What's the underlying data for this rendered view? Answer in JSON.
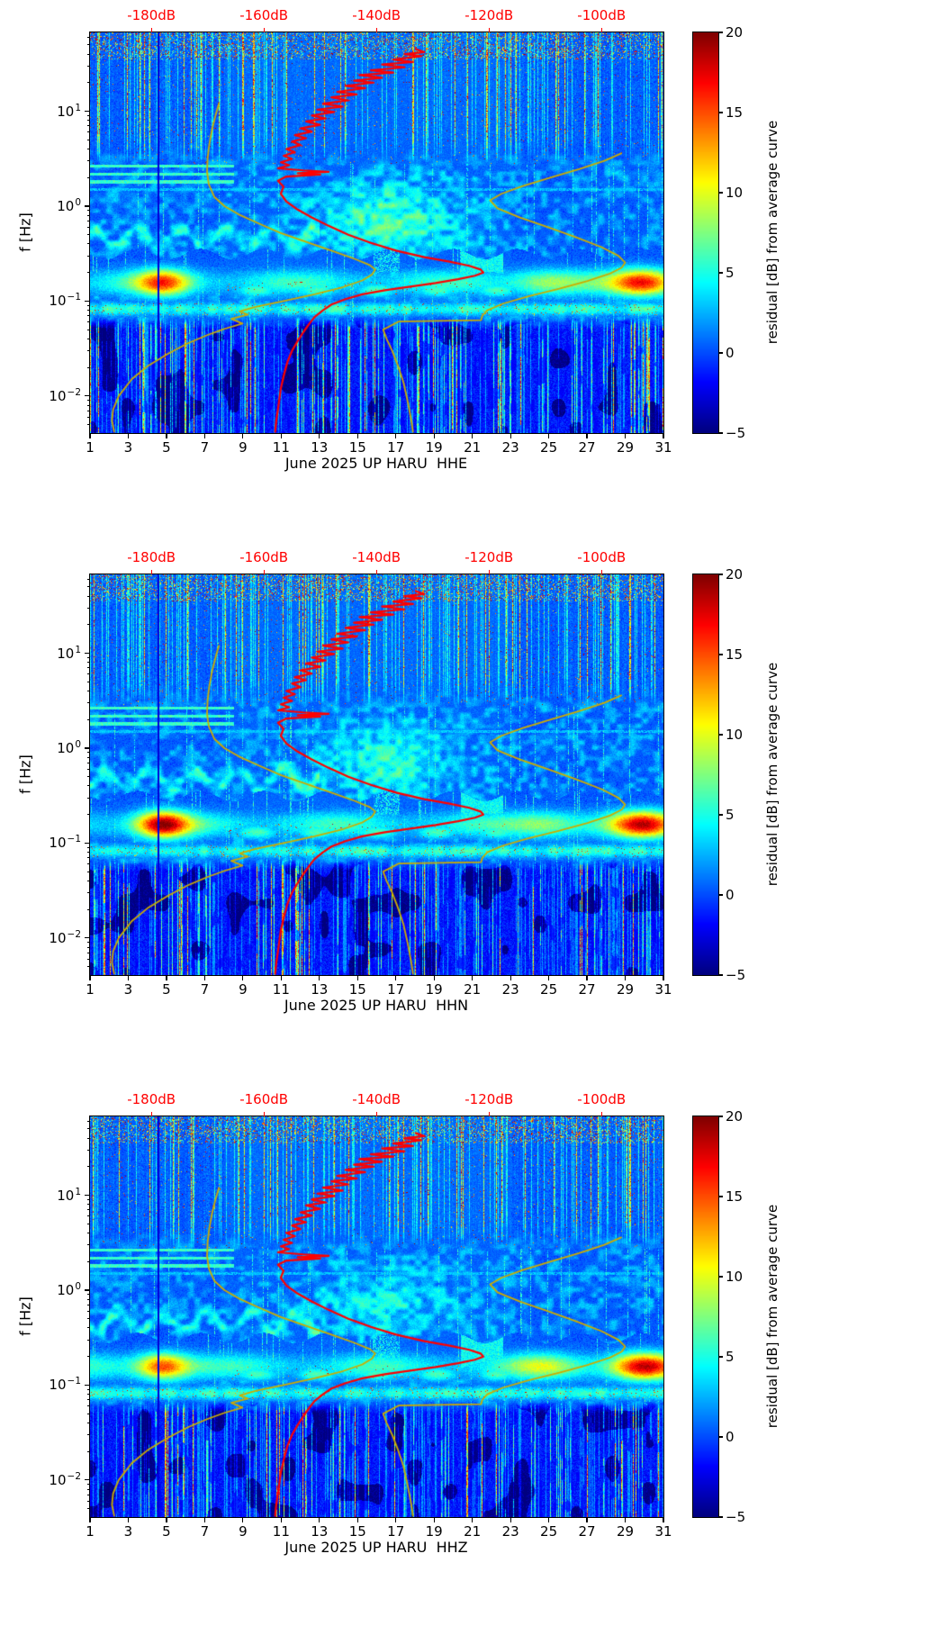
{
  "chart_data": {
    "type": "heatmap",
    "title": "",
    "colormap": "jet",
    "color_limits_db": [
      -5,
      20
    ],
    "x_axis": {
      "range_days": [
        1,
        31
      ],
      "label_days": [
        1,
        3,
        5,
        7,
        9,
        11,
        13,
        15,
        17,
        19,
        21,
        23,
        25,
        27,
        29,
        31
      ],
      "tick_labels": [
        "1",
        "3",
        "5",
        "7",
        "9",
        "11",
        "13",
        "15",
        "17",
        "19",
        "21",
        "23",
        "25",
        "27",
        "29",
        "31"
      ]
    },
    "y_axis": {
      "label": "f [Hz]",
      "base": "10",
      "ticks": [
        {
          "exp": "1",
          "log10_f": 1
        },
        {
          "exp": "0",
          "log10_f": 0
        },
        {
          "exp": "−1",
          "log10_f": -1
        },
        {
          "exp": "−2",
          "log10_f": -2
        }
      ],
      "log10_f_range": [
        -2.39,
        1.83
      ]
    },
    "top_axis": {
      "color": "#ff0000",
      "db_at_plot_edges": [
        -190.9,
        -89.0
      ],
      "labels": [
        {
          "text": "-180dB",
          "db": -180
        },
        {
          "text": "-160dB",
          "db": -160
        },
        {
          "text": "-140dB",
          "db": -140
        },
        {
          "text": "-120dB",
          "db": -120
        },
        {
          "text": "-100dB",
          "db": -100
        }
      ]
    },
    "colorbar": {
      "label": "residual [dB] from average curve",
      "ticks": [
        {
          "text": "20",
          "value": 20
        },
        {
          "text": "15",
          "value": 15
        },
        {
          "text": "10",
          "value": 10
        },
        {
          "text": "5",
          "value": 5
        },
        {
          "text": "0",
          "value": 0
        },
        {
          "text": "−5",
          "value": -5
        }
      ]
    },
    "panels": [
      {
        "xlabel": "June 2025 UP HARU  HHE",
        "seed": 11,
        "features": {
          "hot_blob_left_days": [
            3.5,
            6.2
          ],
          "hot_blob_left_peak_db": 16,
          "hot_blob_right_days": [
            28.5,
            31
          ],
          "hot_blob_right_peak_db": 18,
          "secondary_blob_days": [
            23.5,
            26
          ],
          "mid_cloud_db": 5,
          "dark_band_extra_depth": 0
        }
      },
      {
        "xlabel": "June 2025 UP HARU  HHN",
        "seed": 47,
        "features": {
          "hot_blob_left_days": [
            3.5,
            6.2
          ],
          "hot_blob_left_peak_db": 20,
          "hot_blob_right_days": [
            28.5,
            31
          ],
          "hot_blob_right_peak_db": 18,
          "secondary_blob_days": [
            23.5,
            26
          ],
          "mid_cloud_db": 4,
          "dark_band_extra_depth": 0
        }
      },
      {
        "xlabel": "June 2025 UP HARU  HHZ",
        "seed": 83,
        "features": {
          "hot_blob_left_days": [
            3.5,
            6.2
          ],
          "hot_blob_left_peak_db": 17,
          "hot_blob_right_days": [
            28.5,
            31
          ],
          "hot_blob_right_peak_db": 19,
          "secondary_blob_days": [
            23.5,
            26
          ],
          "mid_cloud_db": 3,
          "dark_band_extra_depth": 0.06
        }
      }
    ],
    "curves": {
      "average_psd": {
        "name": "station average PSD (red, read on top dB axis)",
        "color": "#ff0000",
        "points_db_hz": [
          [
            -133,
            45
          ],
          [
            -131.5,
            42
          ],
          [
            -135,
            40
          ],
          [
            -132,
            38
          ],
          [
            -137,
            35
          ],
          [
            -133.5,
            33
          ],
          [
            -139,
            31
          ],
          [
            -135,
            29
          ],
          [
            -141,
            27
          ],
          [
            -137,
            25.5
          ],
          [
            -143,
            24
          ],
          [
            -139,
            22.5
          ],
          [
            -144,
            21
          ],
          [
            -140.5,
            20
          ],
          [
            -145.5,
            18.5
          ],
          [
            -142,
            17.5
          ],
          [
            -147,
            16
          ],
          [
            -143.5,
            15
          ],
          [
            -148,
            14
          ],
          [
            -145,
            13
          ],
          [
            -149.5,
            12
          ],
          [
            -146,
            11.2
          ],
          [
            -150.5,
            10.4
          ],
          [
            -147.5,
            9.8
          ],
          [
            -151.5,
            9
          ],
          [
            -149,
            8.4
          ],
          [
            -152.5,
            7.8
          ],
          [
            -150,
            7.2
          ],
          [
            -153.5,
            6.6
          ],
          [
            -151.5,
            6.1
          ],
          [
            -154.5,
            5.6
          ],
          [
            -152.5,
            5.2
          ],
          [
            -155,
            4.8
          ],
          [
            -153.5,
            4.4
          ],
          [
            -156,
            4.0
          ],
          [
            -154.5,
            3.7
          ],
          [
            -156.5,
            3.4
          ],
          [
            -155,
            3.15
          ],
          [
            -157,
            2.9
          ],
          [
            -155.5,
            2.7
          ],
          [
            -157.5,
            2.5
          ],
          [
            -153,
            2.38
          ],
          [
            -148.5,
            2.3
          ],
          [
            -154,
            2.22
          ],
          [
            -150,
            2.15
          ],
          [
            -156,
            2.05
          ],
          [
            -157.5,
            1.85
          ],
          [
            -156.5,
            1.6
          ],
          [
            -157,
            1.35
          ],
          [
            -156,
            1.12
          ],
          [
            -154,
            0.92
          ],
          [
            -151.5,
            0.76
          ],
          [
            -148.5,
            0.62
          ],
          [
            -145,
            0.5
          ],
          [
            -141,
            0.41
          ],
          [
            -136.5,
            0.34
          ],
          [
            -131.5,
            0.29
          ],
          [
            -127,
            0.26
          ],
          [
            -123.5,
            0.235
          ],
          [
            -121.5,
            0.215
          ],
          [
            -121,
            0.2
          ],
          [
            -122.5,
            0.185
          ],
          [
            -125.5,
            0.17
          ],
          [
            -129.5,
            0.155
          ],
          [
            -134,
            0.142
          ],
          [
            -138.5,
            0.13
          ],
          [
            -142.5,
            0.118
          ],
          [
            -145.5,
            0.105
          ],
          [
            -148,
            0.092
          ],
          [
            -149.5,
            0.08
          ],
          [
            -151,
            0.068
          ],
          [
            -152,
            0.057
          ],
          [
            -153,
            0.047
          ],
          [
            -154,
            0.038
          ],
          [
            -155,
            0.03
          ],
          [
            -155.8,
            0.023
          ],
          [
            -156.4,
            0.017
          ],
          [
            -157,
            0.012
          ],
          [
            -157.4,
            0.008
          ],
          [
            -157.8,
            0.0055
          ],
          [
            -158,
            0.0042
          ]
        ]
      },
      "noise_model_low": {
        "name": "low noise model (yellow, left branch)",
        "color": "#ccac00",
        "points_db_hz": [
          [
            -168,
            12
          ],
          [
            -168.6,
            9
          ],
          [
            -169.2,
            6.5
          ],
          [
            -169.7,
            4.5
          ],
          [
            -170,
            3.2
          ],
          [
            -170.1,
            2.3
          ],
          [
            -169.8,
            1.7
          ],
          [
            -168.8,
            1.25
          ],
          [
            -167,
            1.0
          ],
          [
            -164.5,
            0.82
          ],
          [
            -161,
            0.66
          ],
          [
            -157,
            0.52
          ],
          [
            -152.5,
            0.42
          ],
          [
            -148,
            0.34
          ],
          [
            -144,
            0.28
          ],
          [
            -141.2,
            0.24
          ],
          [
            -140.2,
            0.215
          ],
          [
            -140.8,
            0.19
          ],
          [
            -142.5,
            0.165
          ],
          [
            -146,
            0.14
          ],
          [
            -151,
            0.118
          ],
          [
            -156.5,
            0.1
          ],
          [
            -161.5,
            0.087
          ],
          [
            -164.3,
            0.078
          ],
          [
            -162.8,
            0.072
          ],
          [
            -165.8,
            0.065
          ],
          [
            -163.8,
            0.058
          ],
          [
            -167,
            0.051
          ],
          [
            -170,
            0.044
          ],
          [
            -173.5,
            0.036
          ],
          [
            -177,
            0.028
          ],
          [
            -180.5,
            0.021
          ],
          [
            -183.5,
            0.015
          ],
          [
            -185.8,
            0.01
          ],
          [
            -186.8,
            0.0072
          ],
          [
            -187,
            0.0055
          ],
          [
            -186.6,
            0.0042
          ]
        ]
      },
      "noise_model_high": {
        "name": "high noise model (yellow, right branch)",
        "color": "#ccac00",
        "points_db_hz": [
          [
            -96.5,
            3.6
          ],
          [
            -99.5,
            3.0
          ],
          [
            -104,
            2.45
          ],
          [
            -109,
            2.0
          ],
          [
            -114,
            1.63
          ],
          [
            -117.8,
            1.35
          ],
          [
            -119.8,
            1.15
          ],
          [
            -118.5,
            0.95
          ],
          [
            -114.5,
            0.76
          ],
          [
            -109.5,
            0.6
          ],
          [
            -104.5,
            0.47
          ],
          [
            -100,
            0.37
          ],
          [
            -97,
            0.3
          ],
          [
            -95.8,
            0.255
          ],
          [
            -96.4,
            0.225
          ],
          [
            -98.5,
            0.195
          ],
          [
            -102.5,
            0.163
          ],
          [
            -107.5,
            0.135
          ],
          [
            -113,
            0.112
          ],
          [
            -117.5,
            0.094
          ],
          [
            -120.3,
            0.08
          ],
          [
            -121.2,
            0.07
          ],
          [
            -121.4,
            0.063
          ],
          [
            -136,
            0.061
          ],
          [
            -138.8,
            0.05
          ],
          [
            -138.2,
            0.04
          ],
          [
            -137.2,
            0.03
          ],
          [
            -136.2,
            0.021
          ],
          [
            -135.2,
            0.014
          ],
          [
            -134.4,
            0.0085
          ],
          [
            -133.8,
            0.0055
          ],
          [
            -133.5,
            0.0042
          ]
        ]
      }
    }
  }
}
